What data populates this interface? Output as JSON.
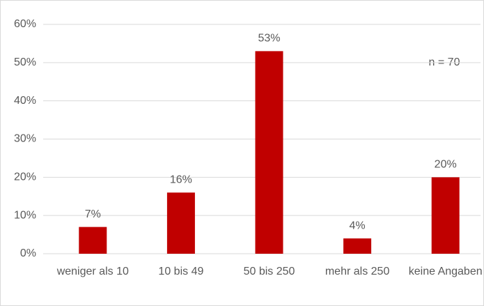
{
  "chart_data": {
    "type": "bar",
    "categories": [
      "weniger als 10",
      "10 bis 49",
      "50 bis 250",
      "mehr als 250",
      "keine Angaben"
    ],
    "values": [
      7,
      16,
      53,
      4,
      20
    ],
    "value_labels": [
      "7%",
      "16%",
      "53%",
      "4%",
      "20%"
    ],
    "color": "#c00000",
    "ylim": [
      0,
      60
    ],
    "yticks": [
      {
        "value": 0,
        "label": "0%"
      },
      {
        "value": 10,
        "label": "10%"
      },
      {
        "value": 20,
        "label": "20%"
      },
      {
        "value": 30,
        "label": "30%"
      },
      {
        "value": 40,
        "label": "40%"
      },
      {
        "value": 50,
        "label": "50%"
      },
      {
        "value": 60,
        "label": "60%"
      }
    ],
    "grid": true,
    "annotations": [
      "n = 70"
    ]
  }
}
